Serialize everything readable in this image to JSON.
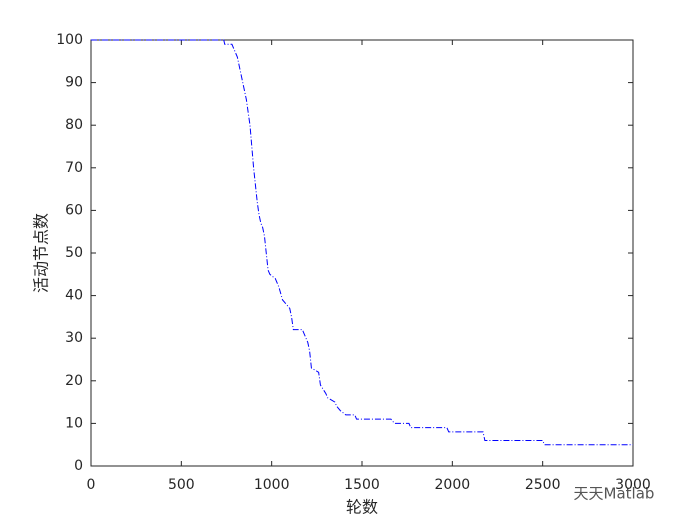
{
  "chart_data": {
    "type": "line",
    "x_label": "轮数",
    "y_label": "活动节点数",
    "watermark": "天天Matlab",
    "x": [
      0,
      735,
      740,
      780,
      790,
      800,
      810,
      820,
      830,
      840,
      850,
      860,
      870,
      880,
      890,
      900,
      910,
      920,
      930,
      940,
      950,
      960,
      970,
      980,
      990,
      1020,
      1040,
      1060,
      1080,
      1100,
      1110,
      1120,
      1170,
      1180,
      1200,
      1210,
      1220,
      1260,
      1270,
      1300,
      1310,
      1350,
      1360,
      1380,
      1410,
      1460,
      1470,
      1660,
      1680,
      1760,
      1770,
      1970,
      1980,
      2170,
      2180,
      2500,
      2510,
      3000
    ],
    "series": [
      {
        "color": "#0000ff",
        "values": [
          100,
          100,
          99,
          99,
          98,
          97,
          96,
          94,
          92,
          90,
          88,
          86,
          83,
          80,
          75,
          70,
          66,
          62,
          59,
          57,
          56,
          54,
          50,
          46,
          45,
          44,
          42,
          39,
          38,
          37,
          35,
          32,
          32,
          31,
          29,
          27,
          23,
          22,
          19,
          17,
          16,
          15,
          14,
          13,
          12,
          12,
          11,
          11,
          10,
          10,
          9,
          9,
          8,
          8,
          6,
          6,
          5,
          5
        ]
      }
    ],
    "xlim": [
      0,
      3000
    ],
    "xticks": [
      0,
      500,
      1000,
      1500,
      2000,
      2500,
      3000
    ],
    "ylim": [
      0,
      100
    ],
    "yticks": [
      0,
      10,
      20,
      30,
      40,
      50,
      60,
      70,
      80,
      90,
      100
    ]
  }
}
